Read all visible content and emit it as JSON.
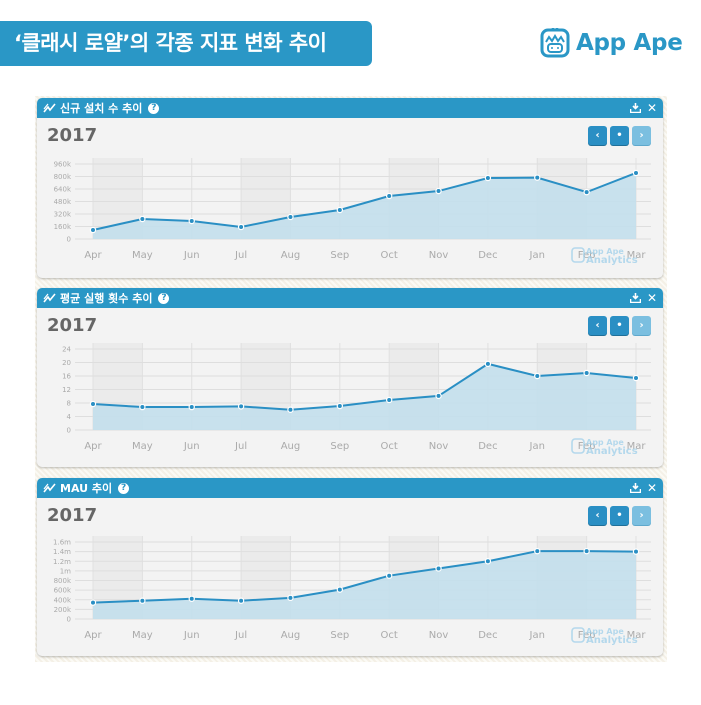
{
  "header": {
    "title": "‘클래시 로얄’의 각종 지표 변화 추이",
    "logo_text": "App Ape",
    "brand_color": "#2a97c6"
  },
  "panels": [
    {
      "title": "신규 설치 수 추이",
      "year": "2017",
      "icons": {
        "trend": "trend-line-icon",
        "help": "question-circle-icon",
        "download": "download-icon",
        "close": "close-icon"
      },
      "nav": {
        "prev": "‹",
        "current": "•",
        "next": "›"
      },
      "watermark": [
        "App Ape",
        "Analytics"
      ]
    },
    {
      "title": "평균 실행 횟수 추이",
      "year": "2017",
      "icons": {
        "trend": "trend-line-icon",
        "help": "question-circle-icon",
        "download": "download-icon",
        "close": "close-icon"
      },
      "nav": {
        "prev": "‹",
        "current": "•",
        "next": "›"
      },
      "watermark": [
        "App Ape",
        "Analytics"
      ]
    },
    {
      "title": "MAU 추이",
      "year": "2017",
      "icons": {
        "trend": "trend-line-icon",
        "help": "question-circle-icon",
        "download": "download-icon",
        "close": "close-icon"
      },
      "nav": {
        "prev": "‹",
        "current": "•",
        "next": "›"
      },
      "watermark": [
        "App Ape",
        "Analytics"
      ]
    }
  ],
  "chart_data": [
    {
      "type": "area",
      "title": "신규 설치 수 추이",
      "subtitle": "2017",
      "categories": [
        "Apr",
        "May",
        "Jun",
        "Jul",
        "Aug",
        "Sep",
        "Oct",
        "Nov",
        "Dec",
        "Jan",
        "Feb",
        "Mar"
      ],
      "values": [
        115000,
        256000,
        230000,
        154000,
        282000,
        371000,
        550000,
        614000,
        781000,
        785000,
        600000,
        845000
      ],
      "yticks": [
        "0",
        "160k",
        "320k",
        "480k",
        "640k",
        "800k",
        "960k"
      ],
      "ytick_values": [
        0,
        160000,
        320000,
        480000,
        640000,
        800000,
        960000
      ],
      "ylim": [
        0,
        960000
      ],
      "xlabel": "",
      "ylabel": "",
      "grid": true,
      "legend": "none",
      "line_color": "#2a8fc4",
      "fill_color": "#c3dfec"
    },
    {
      "type": "area",
      "title": "평균 실행 횟수 추이",
      "subtitle": "2017",
      "categories": [
        "Apr",
        "May",
        "Jun",
        "Jul",
        "Aug",
        "Sep",
        "Oct",
        "Nov",
        "Dec",
        "Jan",
        "Feb",
        "Mar"
      ],
      "values": [
        7.7,
        6.8,
        6.8,
        7.0,
        6.0,
        7.1,
        8.9,
        10.1,
        19.6,
        16.0,
        16.9,
        15.4
      ],
      "yticks": [
        "0",
        "4",
        "8",
        "12",
        "16",
        "20",
        "24"
      ],
      "ytick_values": [
        0,
        4,
        8,
        12,
        16,
        20,
        24
      ],
      "ylim": [
        0,
        24
      ],
      "xlabel": "",
      "ylabel": "",
      "grid": true,
      "legend": "none",
      "line_color": "#2a8fc4",
      "fill_color": "#c3dfec"
    },
    {
      "type": "area",
      "title": "MAU 추이",
      "subtitle": "2017",
      "categories": [
        "Apr",
        "May",
        "Jun",
        "Jul",
        "Aug",
        "Sep",
        "Oct",
        "Nov",
        "Dec",
        "Jan",
        "Feb",
        "Mar"
      ],
      "values": [
        340000,
        380000,
        420000,
        380000,
        440000,
        610000,
        900000,
        1050000,
        1200000,
        1410000,
        1410000,
        1400000
      ],
      "yticks": [
        "0",
        "200k",
        "400k",
        "600k",
        "800k",
        "1m",
        "1.2m",
        "1.4m",
        "1.6m"
      ],
      "ytick_values": [
        0,
        200000,
        400000,
        600000,
        800000,
        1000000,
        1200000,
        1400000,
        1600000
      ],
      "ylim": [
        0,
        1600000
      ],
      "xlabel": "",
      "ylabel": "",
      "grid": true,
      "legend": "none",
      "line_color": "#2a8fc4",
      "fill_color": "#c3dfec"
    }
  ]
}
